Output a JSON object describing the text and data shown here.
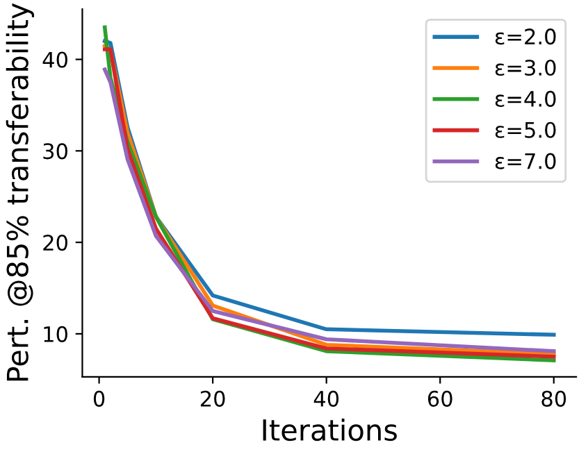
{
  "chart_data": {
    "type": "line",
    "xlabel": "Iterations",
    "ylabel": "Pert. @85% transferability",
    "x": [
      1,
      2,
      5,
      10,
      20,
      40,
      80
    ],
    "series": [
      {
        "name": "ε=2.0",
        "color": "#1f77b4",
        "values": [
          42.0,
          41.8,
          32.6,
          22.8,
          14.2,
          10.5,
          9.9
        ]
      },
      {
        "name": "ε=3.0",
        "color": "#ff7f0e",
        "values": [
          41.5,
          41.0,
          32.0,
          22.8,
          13.1,
          8.8,
          7.8
        ]
      },
      {
        "name": "ε=4.0",
        "color": "#2ca02c",
        "values": [
          43.5,
          38.0,
          31.0,
          22.8,
          11.6,
          8.1,
          7.1
        ]
      },
      {
        "name": "ε=5.0",
        "color": "#d62728",
        "values": [
          41.1,
          41.1,
          30.2,
          21.5,
          11.7,
          8.4,
          7.5
        ]
      },
      {
        "name": "ε=7.0",
        "color": "#9467bd",
        "values": [
          38.9,
          37.5,
          29.1,
          20.7,
          12.5,
          9.4,
          8.1
        ]
      }
    ],
    "xlim": [
      -2.95,
      83.95
    ],
    "ylim": [
      5.3,
      45.5
    ],
    "xticks": [
      0,
      20,
      40,
      60,
      80
    ],
    "yticks": [
      10,
      20,
      30,
      40
    ],
    "grid": false,
    "legend": "top right",
    "marker": "none",
    "line_style": "solid"
  }
}
